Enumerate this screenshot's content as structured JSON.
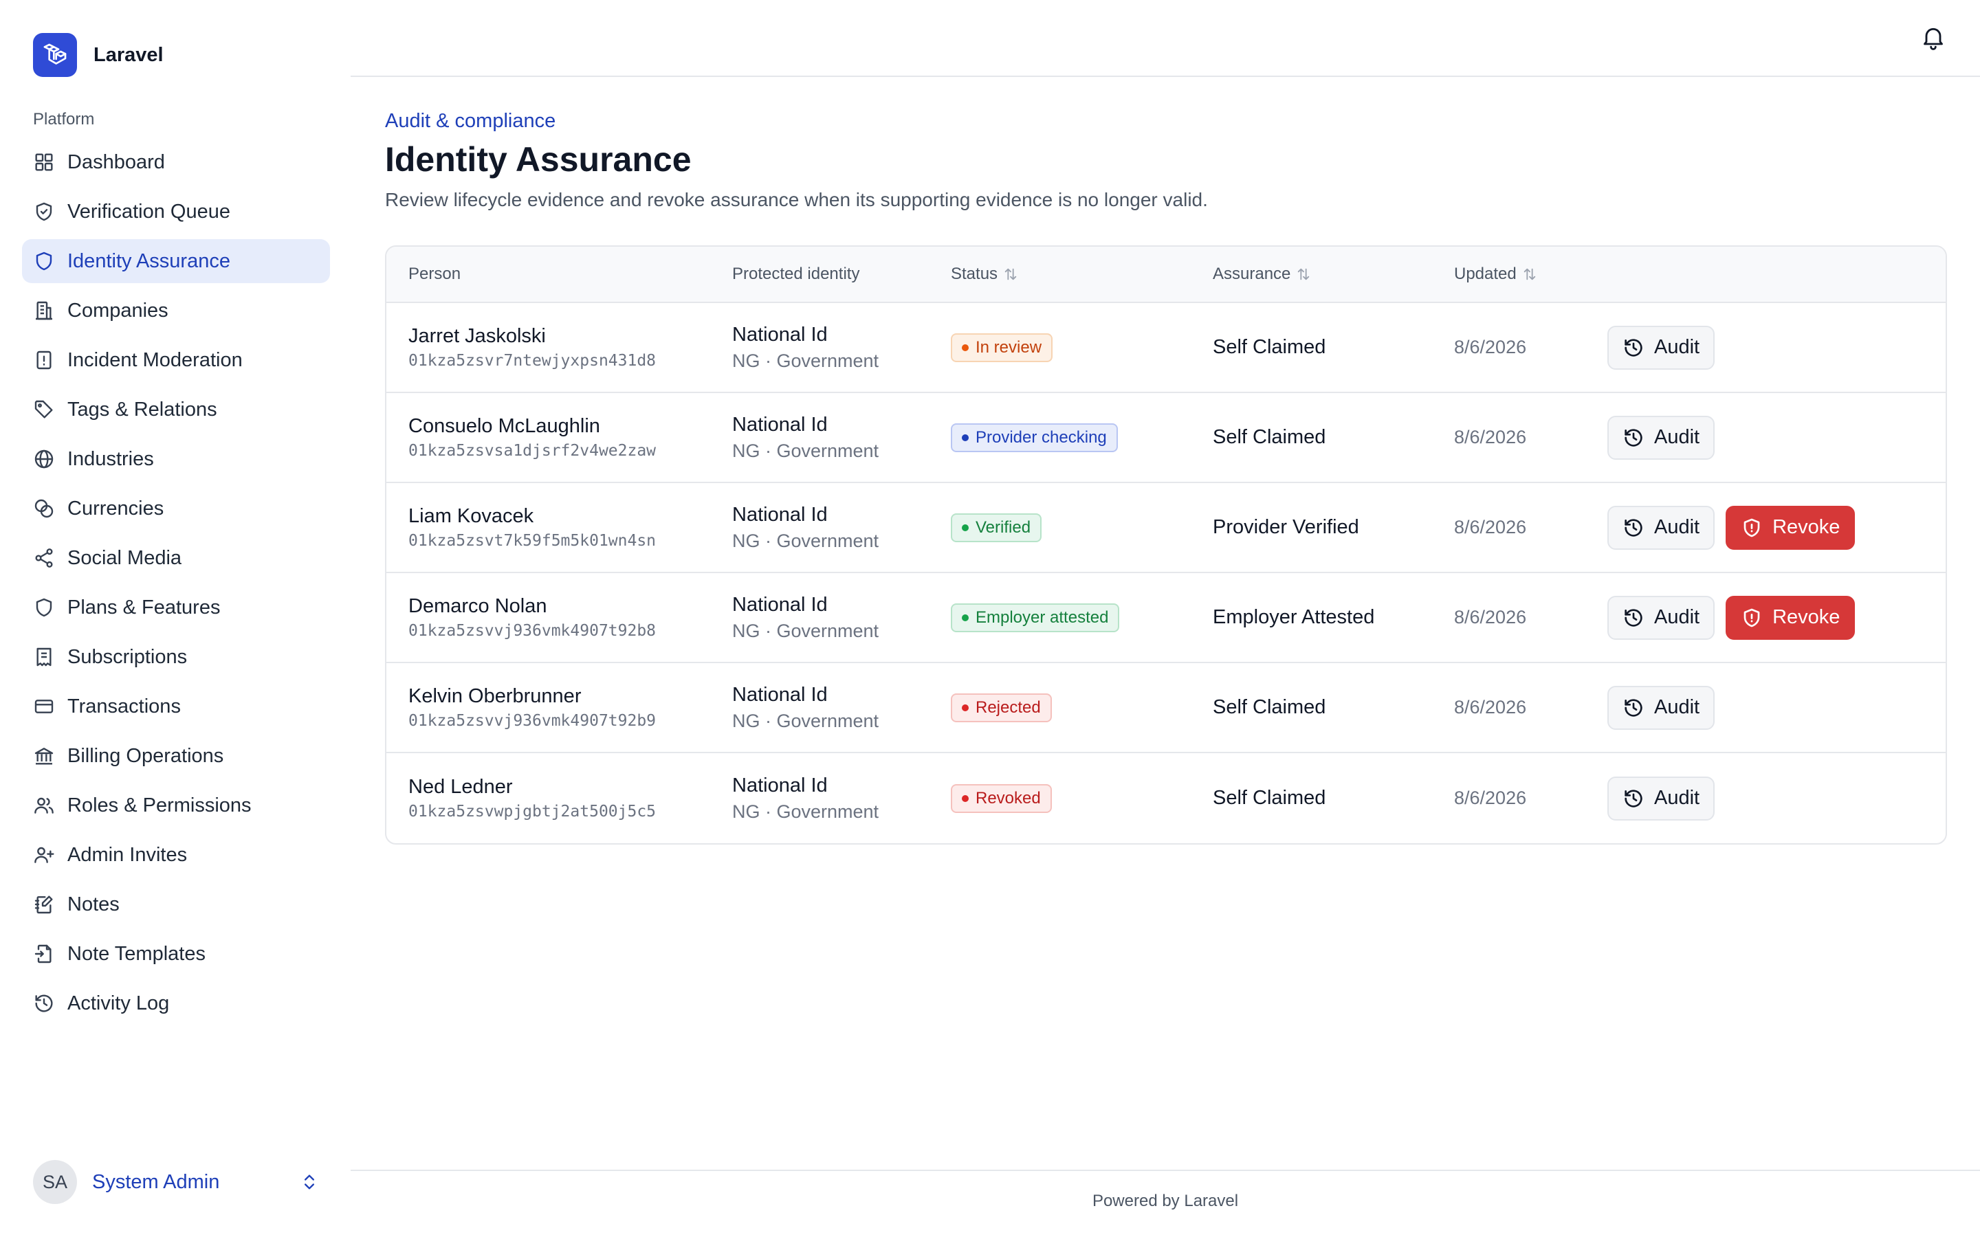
{
  "app": {
    "name": "Laravel"
  },
  "sidebar": {
    "heading": "Platform",
    "items": [
      {
        "label": "Dashboard",
        "icon": "grid-icon"
      },
      {
        "label": "Verification Queue",
        "icon": "shield-check-icon"
      },
      {
        "label": "Identity Assurance",
        "icon": "shield-icon",
        "active": true
      },
      {
        "label": "Companies",
        "icon": "building-icon"
      },
      {
        "label": "Incident Moderation",
        "icon": "alert-file-icon"
      },
      {
        "label": "Tags & Relations",
        "icon": "tag-icon"
      },
      {
        "label": "Industries",
        "icon": "globe-icon"
      },
      {
        "label": "Currencies",
        "icon": "coins-icon"
      },
      {
        "label": "Social Media",
        "icon": "share-icon"
      },
      {
        "label": "Plans & Features",
        "icon": "shield-icon"
      },
      {
        "label": "Subscriptions",
        "icon": "receipt-icon"
      },
      {
        "label": "Transactions",
        "icon": "credit-card-icon"
      },
      {
        "label": "Billing Operations",
        "icon": "bank-icon"
      },
      {
        "label": "Roles & Permissions",
        "icon": "users-icon"
      },
      {
        "label": "Admin Invites",
        "icon": "user-plus-icon"
      },
      {
        "label": "Notes",
        "icon": "notebook-icon"
      },
      {
        "label": "Note Templates",
        "icon": "file-input-icon"
      },
      {
        "label": "Activity Log",
        "icon": "history-icon"
      }
    ]
  },
  "user": {
    "initials": "SA",
    "name": "System Admin"
  },
  "page": {
    "eyebrow": "Audit & compliance",
    "title": "Identity Assurance",
    "description": "Review lifecycle evidence and revoke assurance when its supporting evidence is no longer valid."
  },
  "table": {
    "headers": {
      "person": "Person",
      "identity": "Protected identity",
      "status": "Status",
      "assurance": "Assurance",
      "updated": "Updated"
    },
    "rows": [
      {
        "name": "Jarret Jaskolski",
        "id": "01kza5zsvr7ntewjyxpsn431d8",
        "identity": "National Id",
        "identity_sub": "NG · Government",
        "status": "In review",
        "status_variant": "review",
        "assurance": "Self Claimed",
        "updated": "8/6/2026",
        "revoke": false
      },
      {
        "name": "Consuelo McLaughlin",
        "id": "01kza5zsvsa1djsrf2v4we2zaw",
        "identity": "National Id",
        "identity_sub": "NG · Government",
        "status": "Provider checking",
        "status_variant": "provider",
        "assurance": "Self Claimed",
        "updated": "8/6/2026",
        "revoke": false
      },
      {
        "name": "Liam Kovacek",
        "id": "01kza5zsvt7k59f5m5k01wn4sn",
        "identity": "National Id",
        "identity_sub": "NG · Government",
        "status": "Verified",
        "status_variant": "verified",
        "assurance": "Provider Verified",
        "updated": "8/6/2026",
        "revoke": true
      },
      {
        "name": "Demarco Nolan",
        "id": "01kza5zsvvj936vmk4907t92b8",
        "identity": "National Id",
        "identity_sub": "NG · Government",
        "status": "Employer attested",
        "status_variant": "verified",
        "assurance": "Employer Attested",
        "updated": "8/6/2026",
        "revoke": true
      },
      {
        "name": "Kelvin Oberbrunner",
        "id": "01kza5zsvvj936vmk4907t92b9",
        "identity": "National Id",
        "identity_sub": "NG · Government",
        "status": "Rejected",
        "status_variant": "rejected",
        "assurance": "Self Claimed",
        "updated": "8/6/2026",
        "revoke": false
      },
      {
        "name": "Ned Ledner",
        "id": "01kza5zsvwpjgbtj2at500j5c5",
        "identity": "National Id",
        "identity_sub": "NG · Government",
        "status": "Revoked",
        "status_variant": "rejected",
        "assurance": "Self Claimed",
        "updated": "8/6/2026",
        "revoke": false
      }
    ],
    "audit_label": "Audit",
    "revoke_label": "Revoke"
  },
  "footer": {
    "text": "Powered by Laravel"
  },
  "colors": {
    "accent": "#1e3fb8",
    "brand": "#2f4bd6",
    "danger": "#d63838",
    "active_bg": "#e6ecfb"
  }
}
